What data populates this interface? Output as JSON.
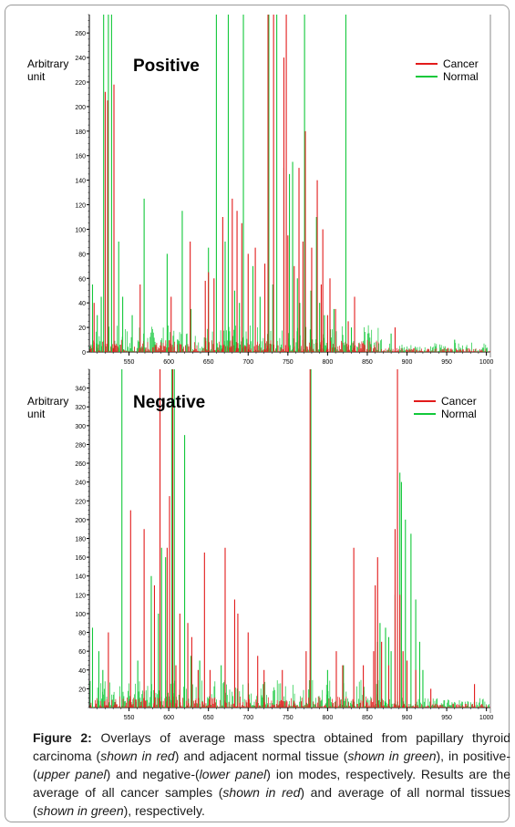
{
  "colors": {
    "cancer": "#e21b1b",
    "normal": "#12c83a",
    "axis": "#000000",
    "caption_text": "#1a1a1a"
  },
  "chart_data": [
    {
      "type": "line",
      "panel_label": "Positive",
      "ylabel_line1": "Arbitrary",
      "ylabel_line2": "unit",
      "xlabel": "",
      "xlim": [
        500,
        1005
      ],
      "ylim": [
        0,
        275
      ],
      "xticks": [
        "550",
        "600",
        "650",
        "700",
        "750",
        "800",
        "850",
        "900",
        "950",
        "1000"
      ],
      "yticks": [
        "0",
        "20",
        "40",
        "60",
        "80",
        "100",
        "120",
        "140",
        "160",
        "180",
        "200",
        "220",
        "240",
        "260"
      ],
      "legend": [
        "Cancer",
        "Normal"
      ],
      "legend_position": "top-right",
      "series": [
        {
          "name": "Cancer",
          "color": "#e21b1b",
          "peaks": [
            [
              506,
              40
            ],
            [
              520,
              212
            ],
            [
              523,
              205
            ],
            [
              531,
              218
            ],
            [
              564,
              55
            ],
            [
              603,
              45
            ],
            [
              627,
              90
            ],
            [
              646,
              58
            ],
            [
              650,
              65
            ],
            [
              657,
              60
            ],
            [
              668,
              110
            ],
            [
              680,
              125
            ],
            [
              686,
              115
            ],
            [
              692,
              105
            ],
            [
              700,
              80
            ],
            [
              709,
              85
            ],
            [
              721,
              72
            ],
            [
              725,
              275
            ],
            [
              732,
              275
            ],
            [
              745,
              240
            ],
            [
              748,
              275
            ],
            [
              750,
              95
            ],
            [
              758,
              70
            ],
            [
              764,
              150
            ],
            [
              769,
              90
            ],
            [
              772,
              180
            ],
            [
              780,
              85
            ],
            [
              787,
              140
            ],
            [
              792,
              55
            ],
            [
              794,
              100
            ],
            [
              800,
              30
            ],
            [
              803,
              60
            ],
            [
              810,
              35
            ],
            [
              826,
              25
            ],
            [
              834,
              45
            ],
            [
              885,
              20
            ]
          ]
        },
        {
          "name": "Normal",
          "color": "#12c83a",
          "peaks": [
            [
              504,
              55
            ],
            [
              510,
              30
            ],
            [
              515,
              45
            ],
            [
              518,
              275
            ],
            [
              524,
              275
            ],
            [
              528,
              275
            ],
            [
              537,
              90
            ],
            [
              542,
              45
            ],
            [
              554,
              30
            ],
            [
              569,
              125
            ],
            [
              598,
              80
            ],
            [
              617,
              115
            ],
            [
              628,
              35
            ],
            [
              650,
              85
            ],
            [
              660,
              275
            ],
            [
              671,
              90
            ],
            [
              675,
              275
            ],
            [
              683,
              50
            ],
            [
              689,
              40
            ],
            [
              694,
              275
            ],
            [
              706,
              70
            ],
            [
              715,
              45
            ],
            [
              726,
              275
            ],
            [
              731,
              55
            ],
            [
              736,
              275
            ],
            [
              745,
              150
            ],
            [
              752,
              145
            ],
            [
              756,
              155
            ],
            [
              762,
              60
            ],
            [
              765,
              40
            ],
            [
              771,
              275
            ],
            [
              779,
              50
            ],
            [
              786,
              110
            ],
            [
              790,
              40
            ],
            [
              796,
              30
            ],
            [
              808,
              35
            ],
            [
              823,
              275
            ],
            [
              830,
              20
            ],
            [
              880,
              15
            ],
            [
              960,
              10
            ]
          ]
        }
      ]
    },
    {
      "type": "line",
      "panel_label": "Negative",
      "ylabel_line1": "Arbitrary",
      "ylabel_line2": "unit",
      "xlabel": "",
      "xlim": [
        500,
        1005
      ],
      "ylim": [
        0,
        360
      ],
      "xticks": [
        "550",
        "600",
        "650",
        "700",
        "750",
        "800",
        "850",
        "900",
        "950",
        "1000"
      ],
      "yticks": [
        "20",
        "40",
        "60",
        "80",
        "100",
        "120",
        "140",
        "160",
        "180",
        "200",
        "220",
        "240",
        "260",
        "280",
        "300",
        "320",
        "340"
      ],
      "legend": [
        "Cancer",
        "Normal"
      ],
      "legend_position": "top-right",
      "series": [
        {
          "name": "Cancer",
          "color": "#e21b1b",
          "peaks": [
            [
              524,
              80
            ],
            [
              552,
              210
            ],
            [
              569,
              190
            ],
            [
              582,
              130
            ],
            [
              589,
              360
            ],
            [
              598,
              170
            ],
            [
              601,
              225
            ],
            [
              605,
              360
            ],
            [
              609,
              45
            ],
            [
              614,
              100
            ],
            [
              624,
              90
            ],
            [
              629,
              75
            ],
            [
              637,
              40
            ],
            [
              645,
              165
            ],
            [
              652,
              40
            ],
            [
              671,
              170
            ],
            [
              683,
              115
            ],
            [
              687,
              100
            ],
            [
              700,
              80
            ],
            [
              712,
              55
            ],
            [
              720,
              40
            ],
            [
              743,
              40
            ],
            [
              773,
              60
            ],
            [
              778,
              360
            ],
            [
              811,
              60
            ],
            [
              819,
              45
            ],
            [
              833,
              170
            ],
            [
              845,
              45
            ],
            [
              858,
              60
            ],
            [
              860,
              130
            ],
            [
              863,
              160
            ],
            [
              868,
              70
            ],
            [
              877,
              45
            ],
            [
              885,
              190
            ],
            [
              888,
              360
            ],
            [
              891,
              120
            ],
            [
              895,
              60
            ],
            [
              900,
              50
            ],
            [
              911,
              40
            ],
            [
              930,
              20
            ],
            [
              985,
              25
            ]
          ]
        },
        {
          "name": "Normal",
          "color": "#12c83a",
          "peaks": [
            [
              504,
              85
            ],
            [
              512,
              60
            ],
            [
              517,
              40
            ],
            [
              541,
              360
            ],
            [
              561,
              50
            ],
            [
              578,
              140
            ],
            [
              587,
              100
            ],
            [
              591,
              170
            ],
            [
              596,
              160
            ],
            [
              604,
              360
            ],
            [
              607,
              360
            ],
            [
              620,
              290
            ],
            [
              628,
              55
            ],
            [
              639,
              50
            ],
            [
              666,
              45
            ],
            [
              687,
              40
            ],
            [
              719,
              25
            ],
            [
              779,
              360
            ],
            [
              800,
              40
            ],
            [
              820,
              45
            ],
            [
              863,
              70
            ],
            [
              866,
              90
            ],
            [
              873,
              85
            ],
            [
              877,
              75
            ],
            [
              880,
              60
            ],
            [
              885,
              120
            ],
            [
              891,
              250
            ],
            [
              893,
              240
            ],
            [
              898,
              200
            ],
            [
              905,
              185
            ],
            [
              911,
              115
            ],
            [
              916,
              70
            ],
            [
              920,
              40
            ]
          ]
        }
      ]
    }
  ],
  "caption": {
    "figure_label": "Figure 2:",
    "seg1": " Overlays of average mass spectra obtained from papillary thyroid carcinoma (",
    "it1": "shown in red",
    "seg2": ") and adjacent normal tissue (",
    "it2": "shown in green",
    "seg3": "), in positive-(",
    "it3": "upper panel",
    "seg4": ") and negative-(",
    "it4": "lower panel",
    "seg5": ") ion modes, respectively. Results are the average of all cancer samples (",
    "it5": "shown in red",
    "seg6": ") and average of all normal tissues (",
    "it6": "shown in green",
    "seg7": "), respectively."
  }
}
